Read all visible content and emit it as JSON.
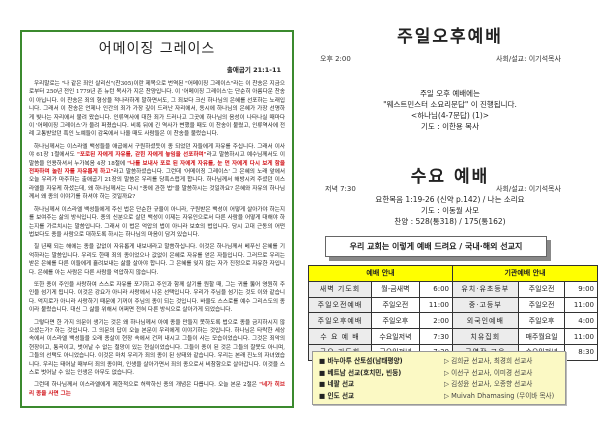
{
  "left": {
    "title": "어메이징 그레이스",
    "reference": "출애굽기 21:1-11",
    "paragraphs": [
      {
        "parts": [
          {
            "t": "우리말로는 \"나 같은 죄인 살리신\"(찬305)이란 제목으로 번역된 \"어메이징 그레이스\"라는 이 찬송은 지금으로부터 250년 전인 1779년 존 뉴턴 목사가 지은 찬양입니다. 이 '어메이징 그레이스'는 단순히 아름다운 찬송이 아닙니다. 이 찬송은 죄의 형상을 적나라하게 말하면서도, 그 죄보다 크신 하나님의 은혜를 선포하는 노래입니다. 그래서 이 찬송은 언제나 인간의 죄가 가장 깊이 드러난 자리에서, 동시에 하나님의 은혜가 가장 선명하게 빛나는 자리에서 불려 왔습니다. 인류역사에 대한 죄가 드러나고 그곳에 하나님의 음성이 나타나실 때마다 이 '어메이징 그레이스'가 울려 퍼졌습니다. 비록 뒤에 긴 역사가 변했을 때도 이 찬송이 불렸고, 인류역사에 전례 고통받았던 흑인 노예들이 감옥에서 나올 때도 사람들은 이 찬송을 불렀습니다.",
            "r": false
          }
        ]
      },
      {
        "parts": [
          {
            "t": "하나님께서는 이스라엘 백성들을 애굽에서 구원하셨듯이 종 되었던 자들에게 자유를 주십니다. 그래서 이사야 61장 1절에서도 ",
            "r": false
          },
          {
            "t": "\"포로된 자에게 자유를, 갇힌 자에게 놓임을 선포하며\"",
            "r": true
          },
          {
            "t": "라고 말씀하시고 예수님께서도 이 말씀을 인용하셔서 누가복음 4장 18절에 ",
            "r": false
          },
          {
            "t": "\"나를 보내사 포로 된 자에게 자유를, 눈 먼 자에게 다시 보게 함을 전파하며 눌린 자를 자유롭게 하고\"",
            "r": true
          },
          {
            "t": "라고 말씀하셨습니다. 그런데 '어메이징 그레이스' 그 은혜의 노래 앞에서 오늘 우리가 마주하는 출애굽기 21장의 말씀은 우리를 당혹스럽게 합니다. 하나님께서 해방시켜 주셨던 이스라엘을 자유케 하셨는데, 왜 하나님께서는 다시 \"종에 관한 법\"을 말씀하시는 것일까요? 은혜와 자유의 하나님께서 왜 종의 이야기를 하셔야 하는 것일까요?",
            "r": false
          }
        ]
      },
      {
        "parts": [
          {
            "t": "하나님께서 이스라엘 백성들에게 주신 법은 단순한 규율이 아니라, 구원받은 백성이 어떻게 살아가야 하는지를 보여주는 삶의 방식입니다. 종의 신분으로 살던 백성이 이제는 자유인으로서 다른 사람을 어떻게 대해야 하는지를 가르치시는 말씀입니다. 그래서 이 법은 억압의 법이 아니라 보호의 법입니다. 당시 고대 근동의 어떤 법보다도 종을 사람으로 대하도록 하시는 하나님의 마음이 담겨 있습니다.",
            "r": false
          }
        ]
      },
      {
        "parts": [
          {
            "t": "칠 년째 되는 해에는 종을 값없이 자유롭게 내보내라고 말씀하십니다. 이것은 하나님께서 베푸신 은혜를 기억하라는 말씀입니다. 우리도 한때 죄의 종이었으나 값없이 은혜로 자유를 얻은 자들입니다. 그러므로 우리는 받은 은혜를 다른 이들에게 흘려보내는 삶을 살아야 합니다. 그 은혜를 잊지 않는 자가 진정으로 자유한 자입니다. 은혜를 아는 사람은 다른 사람을 억압하지 않습니다.",
            "r": false
          }
        ]
      },
      {
        "parts": [
          {
            "t": "또한 종이 주인을 사랑하여 스스로 자유를 포기하고 주인과 함께 살기를 원할 때, 그는 귀를 뚫어 영원히 주인을 섬기게 됩니다. 이것은 강요가 아니라 사랑에서 나온 선택입니다. 우리가 주님을 섬기는 것도 이와 같습니다. 억지로가 아니라 사랑하기 때문에 기꺼이 주님의 종이 되는 것입니다. 바울도 스스로를 예수 그리스도의 종이라 불렀습니다. 대신 그 삶을 위해서 어쩌면 전혀 다른 방식으로 살아가게 되었습니다.",
            "r": false
          }
        ]
      },
      {
        "parts": [
          {
            "t": "그렇다면 한 가지 의문이 생기는 것은 왜 하나님께서 아예 종을 만들지 못하도록 법으로 종을 금지하시지 않으셨는가? 하는 것입니다. 그 의문의 답이 오늘 본문이 우리에게 이야기하는 것입니다. 하나님은 타락한 세상 속에서 이스라엘 백성들을 오래 종살이 현장 속에서 건져 내시고 그들이 사는 모습이었습니다. 그것은 죄악의 현장이고, 통곡이고, 벗어날 수 없는 절망이 있는 현실이었습니다. 그들이 종이 된 것은 그들의 잘못도 아니며, 그들의 선택도 아니었습니다. 이것은 마치 우리가 죄의 종이 된 상태와 같습니다. 우리는 본래 진노의 자녀였습니다. 우리는 태어날 때부터 죄의 종이며, 인생을 살아가면서 죄의 종으로서 비참함으로 살아갑니다. 이것을 스스로 벗어날 수 있는 인생은 아무도 없습니다.",
            "r": false
          }
        ]
      },
      {
        "parts": [
          {
            "t": "그런데 하나님께서 이스라엘에게 제한적으로 허락하신 종의 개념은 다릅니다. 오늘 본문 2절은 ",
            "r": false
          },
          {
            "t": "\"네가 히브리 종을 사면 그는",
            "r": true
          }
        ]
      }
    ]
  },
  "sunday": {
    "title": "주일오후예배",
    "time": "오후 2:00",
    "leader": "사회/설교: 이기석목사",
    "lines": [
      "주일 오후 예배에는",
      "\"웨스트민스터 소요리문답\" 이 진행됩니다.",
      "<하나님(4-7문답) (1)>",
      "기도 : 이한용 목사"
    ]
  },
  "wednesday": {
    "title": "수요 예배",
    "time": "저녁 7:30",
    "leader": "사회/설교: 이기석목사",
    "lines": [
      "요한복음 1:19-26 (신약 p.142) / 나는 소리요",
      "기도 : 이동월 사모",
      "찬양 : 528(통318) / 175(통162)"
    ]
  },
  "banner": "우리 교회는 이렇게 예배 드려요 / 국내·해외 선교지",
  "worship_table": {
    "header": "예배 안내",
    "rows": [
      [
        "새벽 기도회",
        "월-금새벽",
        "6:00"
      ],
      [
        "주일오전예배",
        "주일오전",
        "11:00"
      ],
      [
        "주일오후예배",
        "주일오후",
        "2:00"
      ],
      [
        "수 요 예 배",
        "수요일저녁",
        "7:30"
      ],
      [
        "금요 기도회",
        "금요일저녁",
        "7:30"
      ]
    ]
  },
  "dept_table": {
    "header": "기관예배 안내",
    "rows": [
      [
        "유치·유초등부",
        "주일오전",
        "9:00"
      ],
      [
        "중·고등부",
        "주일오전",
        "11:00"
      ],
      [
        "외국인예배",
        "주일오후",
        "4:00"
      ],
      [
        "치유집회",
        "매주월요일",
        "11:00"
      ],
      [
        "구역장 교육",
        "수요일저녁",
        "8:30"
      ]
    ]
  },
  "missions": [
    {
      "place": "■ 바누아투 산토섬(남태평양)",
      "who": "▷ 김희균 선교사, 최경희 선교사"
    },
    {
      "place": "■ 베트남 선교(호치민, 빈둥)",
      "who": "▷ 이선구 선교사, 이미경 선교사"
    },
    {
      "place": "■ 네팔 선교",
      "who": "▷ 김성윤 선교사, 오종향 선교사"
    },
    {
      "place": "■ 인도 선교",
      "who": "▷ Muivah Dhamasing (무이바 목사)"
    }
  ],
  "colors": {
    "border_green": "#3b8a2e",
    "highlight_red": "#d1161c",
    "table_header": "#ffff00",
    "mission_bg": "#fbf9c4"
  }
}
